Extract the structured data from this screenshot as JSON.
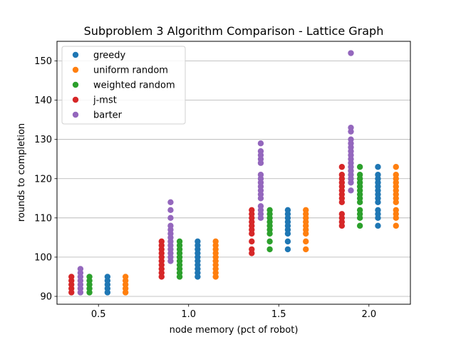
{
  "chart_data": {
    "type": "scatter",
    "title": "Subproblem 3 Algorithm Comparison - Lattice Graph",
    "xlabel": "node memory (pct of robot)",
    "ylabel": "rounds to completion",
    "xlim": [
      0.27,
      2.23
    ],
    "ylim": [
      88,
      155
    ],
    "xticks": [
      0.5,
      1.0,
      1.5,
      2.0
    ],
    "xtick_labels": [
      "0.5",
      "1.0",
      "1.5",
      "2.0"
    ],
    "yticks": [
      90,
      100,
      110,
      120,
      130,
      140,
      150
    ],
    "ytick_labels": [
      "90",
      "100",
      "110",
      "120",
      "130",
      "140",
      "150"
    ],
    "grid": "y",
    "legend_position": "top-left",
    "series": [
      {
        "name": "greedy",
        "color": "#1f77b4",
        "points": [
          [
            0.55,
            91
          ],
          [
            0.55,
            92
          ],
          [
            0.55,
            93
          ],
          [
            0.55,
            94
          ],
          [
            0.55,
            95
          ],
          [
            1.05,
            95
          ],
          [
            1.05,
            96
          ],
          [
            1.05,
            97
          ],
          [
            1.05,
            98
          ],
          [
            1.05,
            99
          ],
          [
            1.05,
            100
          ],
          [
            1.05,
            101
          ],
          [
            1.05,
            102
          ],
          [
            1.05,
            103
          ],
          [
            1.05,
            104
          ],
          [
            1.55,
            102
          ],
          [
            1.55,
            104
          ],
          [
            1.55,
            106
          ],
          [
            1.55,
            107
          ],
          [
            1.55,
            108
          ],
          [
            1.55,
            109
          ],
          [
            1.55,
            110
          ],
          [
            1.55,
            111
          ],
          [
            1.55,
            112
          ],
          [
            2.05,
            108
          ],
          [
            2.05,
            110
          ],
          [
            2.05,
            111
          ],
          [
            2.05,
            112
          ],
          [
            2.05,
            114
          ],
          [
            2.05,
            115
          ],
          [
            2.05,
            116
          ],
          [
            2.05,
            117
          ],
          [
            2.05,
            118
          ],
          [
            2.05,
            119
          ],
          [
            2.05,
            120
          ],
          [
            2.05,
            121
          ],
          [
            2.05,
            123
          ]
        ]
      },
      {
        "name": "uniform random",
        "color": "#ff7f0e",
        "points": [
          [
            0.65,
            91
          ],
          [
            0.65,
            92
          ],
          [
            0.65,
            93
          ],
          [
            0.65,
            94
          ],
          [
            0.65,
            95
          ],
          [
            1.15,
            95
          ],
          [
            1.15,
            96
          ],
          [
            1.15,
            97
          ],
          [
            1.15,
            98
          ],
          [
            1.15,
            99
          ],
          [
            1.15,
            100
          ],
          [
            1.15,
            101
          ],
          [
            1.15,
            102
          ],
          [
            1.15,
            103
          ],
          [
            1.15,
            104
          ],
          [
            1.65,
            102
          ],
          [
            1.65,
            104
          ],
          [
            1.65,
            106
          ],
          [
            1.65,
            107
          ],
          [
            1.65,
            108
          ],
          [
            1.65,
            109
          ],
          [
            1.65,
            110
          ],
          [
            1.65,
            111
          ],
          [
            1.65,
            112
          ],
          [
            2.15,
            108
          ],
          [
            2.15,
            110
          ],
          [
            2.15,
            111
          ],
          [
            2.15,
            112
          ],
          [
            2.15,
            114
          ],
          [
            2.15,
            115
          ],
          [
            2.15,
            116
          ],
          [
            2.15,
            117
          ],
          [
            2.15,
            118
          ],
          [
            2.15,
            119
          ],
          [
            2.15,
            120
          ],
          [
            2.15,
            121
          ],
          [
            2.15,
            123
          ]
        ]
      },
      {
        "name": "weighted random",
        "color": "#2ca02c",
        "points": [
          [
            0.45,
            91
          ],
          [
            0.45,
            92
          ],
          [
            0.45,
            93
          ],
          [
            0.45,
            94
          ],
          [
            0.45,
            95
          ],
          [
            0.95,
            95
          ],
          [
            0.95,
            96
          ],
          [
            0.95,
            97
          ],
          [
            0.95,
            98
          ],
          [
            0.95,
            99
          ],
          [
            0.95,
            100
          ],
          [
            0.95,
            101
          ],
          [
            0.95,
            102
          ],
          [
            0.95,
            103
          ],
          [
            0.95,
            104
          ],
          [
            1.45,
            102
          ],
          [
            1.45,
            104
          ],
          [
            1.45,
            106
          ],
          [
            1.45,
            107
          ],
          [
            1.45,
            108
          ],
          [
            1.45,
            109
          ],
          [
            1.45,
            110
          ],
          [
            1.45,
            111
          ],
          [
            1.45,
            112
          ],
          [
            1.95,
            108
          ],
          [
            1.95,
            110
          ],
          [
            1.95,
            111
          ],
          [
            1.95,
            112
          ],
          [
            1.95,
            114
          ],
          [
            1.95,
            115
          ],
          [
            1.95,
            116
          ],
          [
            1.95,
            117
          ],
          [
            1.95,
            118
          ],
          [
            1.95,
            119
          ],
          [
            1.95,
            120
          ],
          [
            1.95,
            121
          ],
          [
            1.95,
            123
          ]
        ]
      },
      {
        "name": "j-mst",
        "color": "#d62728",
        "points": [
          [
            0.35,
            91
          ],
          [
            0.35,
            92
          ],
          [
            0.35,
            93
          ],
          [
            0.35,
            94
          ],
          [
            0.35,
            95
          ],
          [
            0.85,
            95
          ],
          [
            0.85,
            96
          ],
          [
            0.85,
            97
          ],
          [
            0.85,
            98
          ],
          [
            0.85,
            99
          ],
          [
            0.85,
            100
          ],
          [
            0.85,
            101
          ],
          [
            0.85,
            102
          ],
          [
            0.85,
            103
          ],
          [
            0.85,
            104
          ],
          [
            1.35,
            101
          ],
          [
            1.35,
            102
          ],
          [
            1.35,
            104
          ],
          [
            1.35,
            106
          ],
          [
            1.35,
            107
          ],
          [
            1.35,
            108
          ],
          [
            1.35,
            109
          ],
          [
            1.35,
            110
          ],
          [
            1.35,
            111
          ],
          [
            1.35,
            112
          ],
          [
            1.85,
            108
          ],
          [
            1.85,
            109
          ],
          [
            1.85,
            110
          ],
          [
            1.85,
            111
          ],
          [
            1.85,
            114
          ],
          [
            1.85,
            115
          ],
          [
            1.85,
            116
          ],
          [
            1.85,
            117
          ],
          [
            1.85,
            118
          ],
          [
            1.85,
            119
          ],
          [
            1.85,
            120
          ],
          [
            1.85,
            121
          ],
          [
            1.85,
            123
          ]
        ]
      },
      {
        "name": "barter",
        "color": "#9467bd",
        "points": [
          [
            0.4,
            91
          ],
          [
            0.4,
            92
          ],
          [
            0.4,
            93
          ],
          [
            0.4,
            94
          ],
          [
            0.4,
            95
          ],
          [
            0.4,
            96
          ],
          [
            0.4,
            97
          ],
          [
            0.9,
            99
          ],
          [
            0.9,
            100
          ],
          [
            0.9,
            101
          ],
          [
            0.9,
            102
          ],
          [
            0.9,
            103
          ],
          [
            0.9,
            104
          ],
          [
            0.9,
            105
          ],
          [
            0.9,
            106
          ],
          [
            0.9,
            107
          ],
          [
            0.9,
            108
          ],
          [
            0.9,
            110
          ],
          [
            0.9,
            112
          ],
          [
            0.9,
            114
          ],
          [
            1.4,
            110
          ],
          [
            1.4,
            111
          ],
          [
            1.4,
            112
          ],
          [
            1.4,
            113
          ],
          [
            1.4,
            115
          ],
          [
            1.4,
            116
          ],
          [
            1.4,
            117
          ],
          [
            1.4,
            118
          ],
          [
            1.4,
            119
          ],
          [
            1.4,
            120
          ],
          [
            1.4,
            121
          ],
          [
            1.4,
            124
          ],
          [
            1.4,
            125
          ],
          [
            1.4,
            126
          ],
          [
            1.4,
            127
          ],
          [
            1.4,
            129
          ],
          [
            1.9,
            117
          ],
          [
            1.9,
            119
          ],
          [
            1.9,
            120
          ],
          [
            1.9,
            121
          ],
          [
            1.9,
            122
          ],
          [
            1.9,
            123
          ],
          [
            1.9,
            124
          ],
          [
            1.9,
            125
          ],
          [
            1.9,
            126
          ],
          [
            1.9,
            127
          ],
          [
            1.9,
            128
          ],
          [
            1.9,
            129
          ],
          [
            1.9,
            130
          ],
          [
            1.9,
            132
          ],
          [
            1.9,
            133
          ],
          [
            1.9,
            152
          ]
        ]
      }
    ]
  }
}
